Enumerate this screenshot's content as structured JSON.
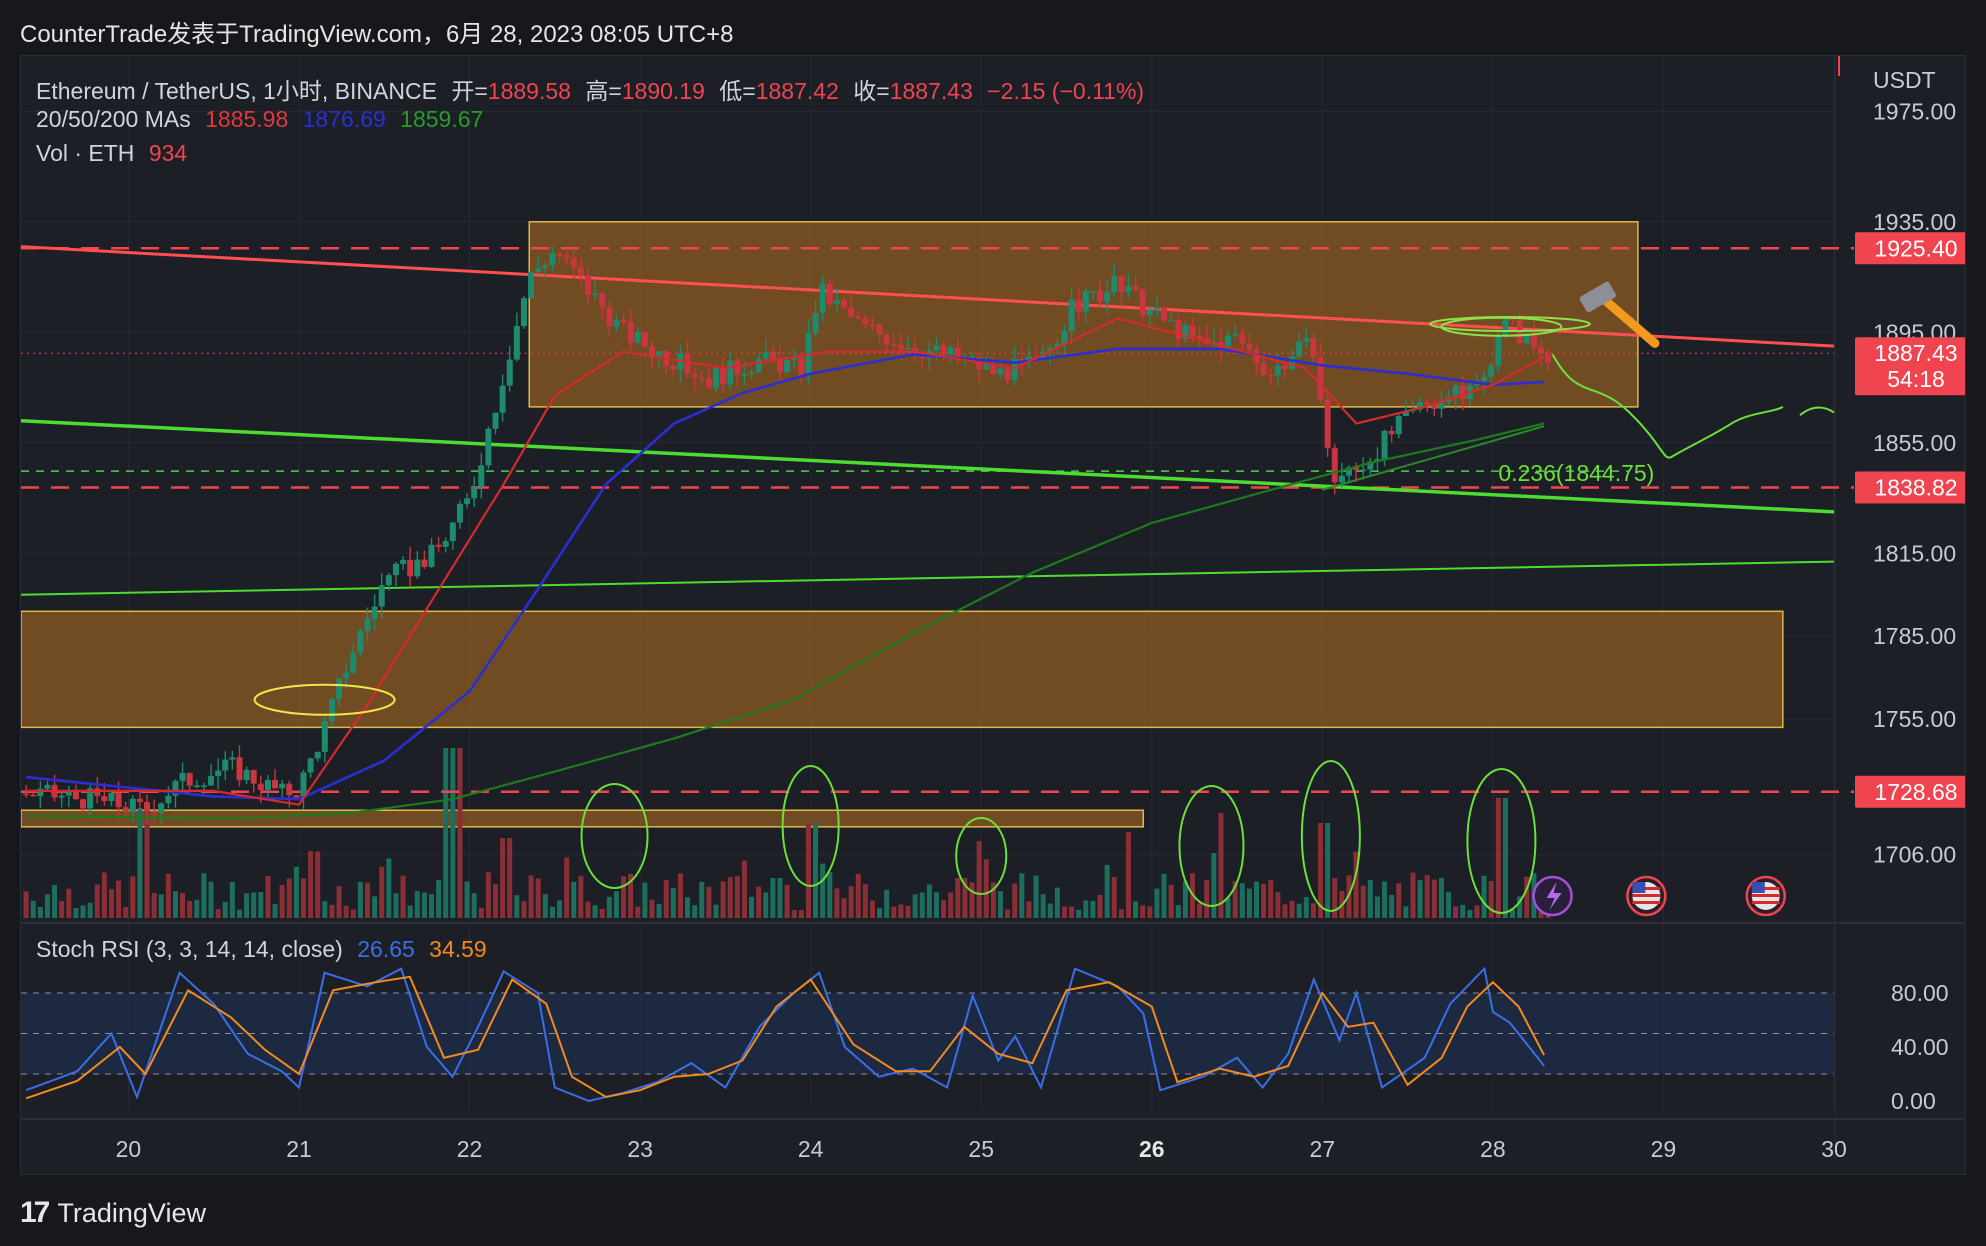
{
  "header": {
    "title": "CounterTrade发表于TradingView.com，6月 28, 2023 08:05 UTC+8"
  },
  "footer": {
    "brand": "TradingView",
    "logo_glyph": "17"
  },
  "colors": {
    "bg": "#1c1f26",
    "up": "#1e8a6e",
    "down": "#c9363f",
    "vol_up": "#1e6e5e",
    "vol_down": "#8a2f36",
    "ma20": "#d62b2b",
    "ma50": "#2a2fd4",
    "ma200": "#1d7a1d",
    "box": "#b8701e",
    "resistance": "#f04550",
    "support": "#6be03a",
    "stoch_k": "#3a6ee8",
    "stoch_d": "#f28a1e"
  },
  "legend": {
    "symbol": "Ethereum / TetherUS, 1小时, BINANCE",
    "open_label": "开=",
    "open": "1889.58",
    "high_label": "高=",
    "high": "1890.19",
    "low_label": "低=",
    "low": "1887.42",
    "close_label": "收=",
    "close": "1887.43",
    "change": "−2.15 (−0.11%)",
    "ma_label": "20/50/200 MAs",
    "ma20": "1885.98",
    "ma50": "1876.69",
    "ma200": "1859.67",
    "vol_label": "Vol · ETH",
    "vol": "934",
    "stoch_label": "Stoch RSI (3, 3, 14, 14, close)",
    "stoch_k": "26.65",
    "stoch_d": "34.59"
  },
  "chart_data": {
    "type": "candlestick",
    "currency": "USDT",
    "ylim": [
      1683,
      1995
    ],
    "yticks": [
      "1975.00",
      "1935.00",
      "1895.00",
      "1855.00",
      "1815.00",
      "1785.00",
      "1755.00",
      "1706.00"
    ],
    "x_labels": [
      "20",
      "21",
      "22",
      "23",
      "24",
      "25",
      "26",
      "27",
      "28",
      "29",
      "30"
    ],
    "xlim": [
      19.37,
      30.0
    ],
    "price_tags": [
      {
        "value": 1925.4,
        "text": "1925.40",
        "color": "#f04550"
      },
      {
        "value": 1887.43,
        "text": "1887.43",
        "sub": "54:18",
        "color": "#f04550"
      },
      {
        "value": 1838.82,
        "text": "1838.82",
        "color": "#f04550"
      },
      {
        "value": 1728.68,
        "text": "1728.68",
        "color": "#f04550"
      }
    ],
    "fib_label": "0.236(1844.75)",
    "fib_value": 1844.75,
    "price_path": [
      [
        19.4,
        1728
      ],
      [
        19.8,
        1726
      ],
      [
        20.1,
        1722
      ],
      [
        20.3,
        1732
      ],
      [
        20.6,
        1738
      ],
      [
        20.9,
        1728
      ],
      [
        21.0,
        1730
      ],
      [
        21.15,
        1752
      ],
      [
        21.3,
        1778
      ],
      [
        21.5,
        1805
      ],
      [
        21.8,
        1815
      ],
      [
        22.0,
        1835
      ],
      [
        22.2,
        1880
      ],
      [
        22.35,
        1915
      ],
      [
        22.5,
        1925
      ],
      [
        22.7,
        1910
      ],
      [
        22.9,
        1895
      ],
      [
        23.1,
        1888
      ],
      [
        23.4,
        1878
      ],
      [
        23.7,
        1885
      ],
      [
        23.95,
        1882
      ],
      [
        24.05,
        1910
      ],
      [
        24.3,
        1897
      ],
      [
        24.6,
        1890
      ],
      [
        24.9,
        1885
      ],
      [
        25.1,
        1880
      ],
      [
        25.35,
        1884
      ],
      [
        25.55,
        1905
      ],
      [
        25.8,
        1912
      ],
      [
        26.0,
        1902
      ],
      [
        26.3,
        1890
      ],
      [
        26.5,
        1893
      ],
      [
        26.7,
        1880
      ],
      [
        26.85,
        1888
      ],
      [
        26.95,
        1890
      ],
      [
        27.05,
        1842
      ],
      [
        27.2,
        1845
      ],
      [
        27.4,
        1858
      ],
      [
        27.6,
        1870
      ],
      [
        27.8,
        1872
      ],
      [
        27.95,
        1878
      ],
      [
        28.05,
        1900
      ],
      [
        28.2,
        1892
      ],
      [
        28.3,
        1887
      ]
    ],
    "ma20_path": [
      [
        19.4,
        1729
      ],
      [
        20.5,
        1729
      ],
      [
        21.0,
        1724
      ],
      [
        21.4,
        1760
      ],
      [
        21.8,
        1800
      ],
      [
        22.2,
        1840
      ],
      [
        22.5,
        1872
      ],
      [
        22.9,
        1888
      ],
      [
        23.5,
        1882
      ],
      [
        24.1,
        1888
      ],
      [
        24.6,
        1888
      ],
      [
        25.2,
        1882
      ],
      [
        25.8,
        1900
      ],
      [
        26.3,
        1892
      ],
      [
        26.9,
        1882
      ],
      [
        27.2,
        1862
      ],
      [
        27.6,
        1868
      ],
      [
        28.0,
        1876
      ],
      [
        28.3,
        1886
      ]
    ],
    "ma50_path": [
      [
        19.4,
        1734
      ],
      [
        20.5,
        1727
      ],
      [
        21.0,
        1726
      ],
      [
        21.5,
        1740
      ],
      [
        22.0,
        1765
      ],
      [
        22.4,
        1802
      ],
      [
        22.8,
        1840
      ],
      [
        23.2,
        1862
      ],
      [
        23.6,
        1873
      ],
      [
        24.0,
        1880
      ],
      [
        24.6,
        1887
      ],
      [
        25.2,
        1884
      ],
      [
        25.8,
        1889
      ],
      [
        26.4,
        1889
      ],
      [
        27.0,
        1883
      ],
      [
        27.5,
        1880
      ],
      [
        28.0,
        1876
      ],
      [
        28.3,
        1877
      ]
    ],
    "ma200_path": [
      [
        19.4,
        1720
      ],
      [
        20.6,
        1719
      ],
      [
        21.3,
        1721
      ],
      [
        21.9,
        1726
      ],
      [
        22.5,
        1736
      ],
      [
        23.2,
        1748
      ],
      [
        23.9,
        1762
      ],
      [
        24.6,
        1786
      ],
      [
        25.3,
        1808
      ],
      [
        26.0,
        1826
      ],
      [
        26.7,
        1838
      ],
      [
        27.3,
        1848
      ],
      [
        27.9,
        1856
      ],
      [
        28.3,
        1862
      ]
    ],
    "stoch": {
      "ylim": [
        0,
        100
      ],
      "yticks": [
        "80.00",
        "40.00",
        "0.00"
      ],
      "k": [
        [
          19.4,
          8
        ],
        [
          19.7,
          22
        ],
        [
          19.9,
          50
        ],
        [
          20.05,
          3
        ],
        [
          20.3,
          95
        ],
        [
          20.5,
          72
        ],
        [
          20.7,
          35
        ],
        [
          20.9,
          22
        ],
        [
          21.0,
          10
        ],
        [
          21.15,
          95
        ],
        [
          21.4,
          85
        ],
        [
          21.6,
          98
        ],
        [
          21.75,
          40
        ],
        [
          21.9,
          18
        ],
        [
          22.05,
          55
        ],
        [
          22.2,
          96
        ],
        [
          22.4,
          80
        ],
        [
          22.5,
          10
        ],
        [
          22.7,
          0
        ],
        [
          22.9,
          6
        ],
        [
          23.1,
          14
        ],
        [
          23.3,
          28
        ],
        [
          23.5,
          10
        ],
        [
          23.7,
          55
        ],
        [
          23.9,
          80
        ],
        [
          24.05,
          95
        ],
        [
          24.2,
          40
        ],
        [
          24.4,
          18
        ],
        [
          24.6,
          24
        ],
        [
          24.8,
          10
        ],
        [
          24.95,
          78
        ],
        [
          25.1,
          30
        ],
        [
          25.2,
          48
        ],
        [
          25.35,
          10
        ],
        [
          25.55,
          98
        ],
        [
          25.8,
          85
        ],
        [
          25.95,
          65
        ],
        [
          26.05,
          8
        ],
        [
          26.3,
          18
        ],
        [
          26.5,
          32
        ],
        [
          26.65,
          10
        ],
        [
          26.8,
          35
        ],
        [
          26.95,
          90
        ],
        [
          27.1,
          45
        ],
        [
          27.2,
          80
        ],
        [
          27.35,
          10
        ],
        [
          27.6,
          32
        ],
        [
          27.75,
          72
        ],
        [
          27.95,
          98
        ],
        [
          28.0,
          66
        ],
        [
          28.1,
          58
        ],
        [
          28.3,
          26
        ]
      ],
      "d": [
        [
          19.4,
          2
        ],
        [
          19.7,
          15
        ],
        [
          19.95,
          40
        ],
        [
          20.1,
          20
        ],
        [
          20.35,
          82
        ],
        [
          20.6,
          62
        ],
        [
          20.8,
          38
        ],
        [
          21.0,
          20
        ],
        [
          21.2,
          82
        ],
        [
          21.45,
          88
        ],
        [
          21.65,
          92
        ],
        [
          21.85,
          32
        ],
        [
          22.05,
          38
        ],
        [
          22.25,
          90
        ],
        [
          22.45,
          72
        ],
        [
          22.6,
          18
        ],
        [
          22.8,
          3
        ],
        [
          23.0,
          8
        ],
        [
          23.2,
          18
        ],
        [
          23.4,
          20
        ],
        [
          23.6,
          30
        ],
        [
          23.8,
          70
        ],
        [
          24.0,
          90
        ],
        [
          24.25,
          42
        ],
        [
          24.5,
          22
        ],
        [
          24.7,
          22
        ],
        [
          24.9,
          55
        ],
        [
          25.1,
          35
        ],
        [
          25.3,
          28
        ],
        [
          25.5,
          82
        ],
        [
          25.75,
          88
        ],
        [
          26.0,
          70
        ],
        [
          26.15,
          14
        ],
        [
          26.4,
          24
        ],
        [
          26.6,
          18
        ],
        [
          26.8,
          26
        ],
        [
          27.0,
          80
        ],
        [
          27.15,
          55
        ],
        [
          27.3,
          58
        ],
        [
          27.5,
          12
        ],
        [
          27.7,
          32
        ],
        [
          27.85,
          70
        ],
        [
          28.0,
          88
        ],
        [
          28.15,
          70
        ],
        [
          28.3,
          34
        ]
      ]
    }
  }
}
